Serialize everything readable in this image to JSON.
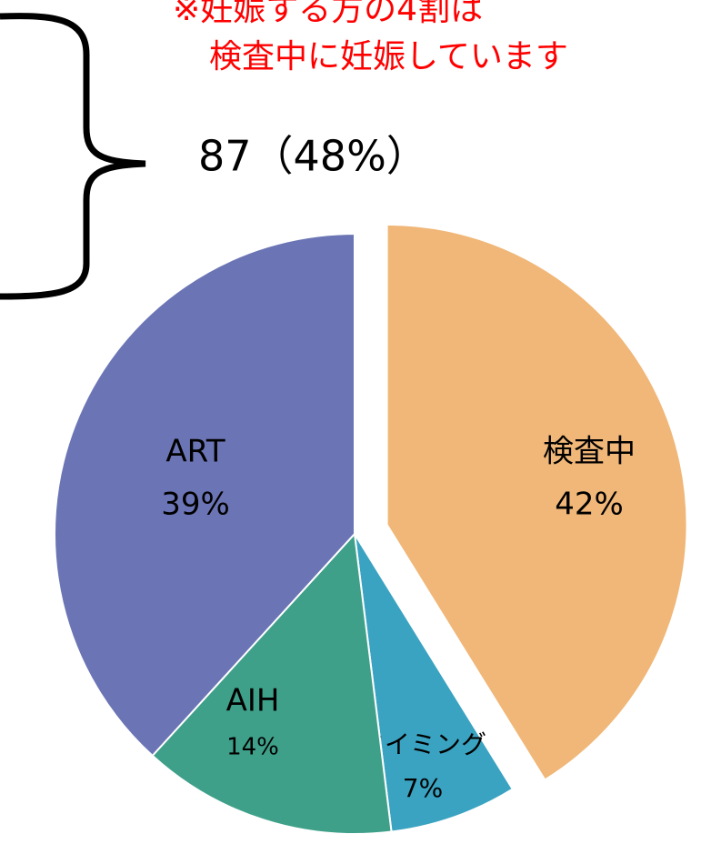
{
  "chart_data": {
    "type": "pie",
    "annotations": [
      "※妊娠する方の4割は",
      "検査中に妊娠しています",
      "87（48%）"
    ],
    "categories": [
      "検査中",
      "タイミング",
      "AIH",
      "ART"
    ],
    "values": [
      42,
      7,
      14,
      39
    ],
    "value_labels": [
      "42%",
      "7%",
      "14%",
      "39%"
    ],
    "colors": [
      "#f0b778",
      "#3aa3c1",
      "#3fa08a",
      "#6b75b5"
    ]
  }
}
